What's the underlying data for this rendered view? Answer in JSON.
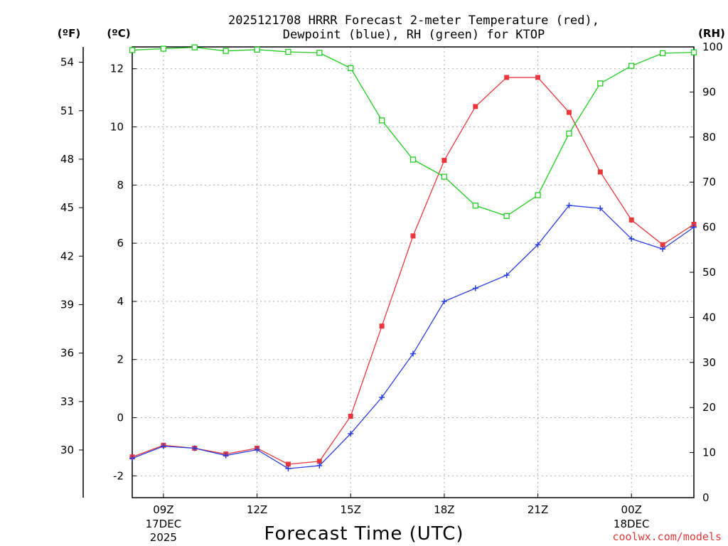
{
  "chart_data": {
    "type": "line",
    "title_line1": "2025121708 HRRR Forecast 2-meter Temperature (red),",
    "title_line2": "Dewpoint (blue), RH (green) for KTOP",
    "xlabel": "Forecast Time (UTC)",
    "credit": "coolwx.com/models",
    "unit_f": "(ºF)",
    "unit_c": "(ºC)",
    "unit_rh": "(RH)",
    "hours": [
      8,
      9,
      10,
      11,
      12,
      13,
      14,
      15,
      16,
      17,
      18,
      19,
      20,
      21,
      22,
      23,
      24,
      25,
      26
    ],
    "x_ticks": [
      {
        "hour": 9,
        "label": "09Z",
        "sub1": "17DEC",
        "sub2": "2025"
      },
      {
        "hour": 12,
        "label": "12Z",
        "sub1": "",
        "sub2": ""
      },
      {
        "hour": 15,
        "label": "15Z",
        "sub1": "",
        "sub2": ""
      },
      {
        "hour": 18,
        "label": "18Z",
        "sub1": "",
        "sub2": ""
      },
      {
        "hour": 21,
        "label": "21Z",
        "sub1": "",
        "sub2": ""
      },
      {
        "hour": 24,
        "label": "00Z",
        "sub1": "18DEC",
        "sub2": ""
      }
    ],
    "celsius_axis": {
      "ylim": [
        -2.75,
        12.75
      ],
      "ticks": [
        "-2",
        "0",
        "2",
        "4",
        "6",
        "8",
        "10",
        "12"
      ],
      "tick_values": [
        -2,
        0,
        2,
        4,
        6,
        8,
        10,
        12
      ]
    },
    "fahrenheit_axis": {
      "ticks": [
        "30",
        "33",
        "36",
        "39",
        "42",
        "45",
        "48",
        "51",
        "54"
      ],
      "tick_values": [
        30,
        33,
        36,
        39,
        42,
        45,
        48,
        51,
        54
      ]
    },
    "rh_axis": {
      "ylim": [
        0,
        100
      ],
      "ticks": [
        "0",
        "10",
        "20",
        "30",
        "40",
        "50",
        "60",
        "70",
        "80",
        "90",
        "100"
      ],
      "tick_values": [
        0,
        10,
        20,
        30,
        40,
        50,
        60,
        70,
        80,
        90,
        100
      ]
    },
    "series": [
      {
        "name": "Temperature",
        "axis": "celsius",
        "color": "#e8383d",
        "values": [
          -1.35,
          -0.95,
          -1.05,
          -1.25,
          -1.05,
          -1.6,
          -1.5,
          0.05,
          3.15,
          6.25,
          8.85,
          10.7,
          11.7,
          11.7,
          10.5,
          8.45,
          6.8,
          5.95,
          6.65
        ]
      },
      {
        "name": "Dewpoint",
        "axis": "celsius",
        "color": "#2a3ee0",
        "values": [
          -1.4,
          -0.98,
          -1.05,
          -1.3,
          -1.1,
          -1.75,
          -1.65,
          -0.55,
          0.7,
          2.2,
          4.0,
          4.45,
          4.9,
          5.95,
          7.3,
          7.2,
          6.15,
          5.8,
          6.55
        ]
      },
      {
        "name": "RH",
        "axis": "rh",
        "color": "#22cc22",
        "values": [
          99.3,
          99.6,
          99.9,
          99.1,
          99.4,
          98.9,
          98.7,
          95.3,
          83.7,
          75.0,
          71.2,
          64.8,
          62.5,
          67.1,
          80.8,
          91.9,
          95.8,
          98.6,
          98.8
        ]
      }
    ]
  }
}
